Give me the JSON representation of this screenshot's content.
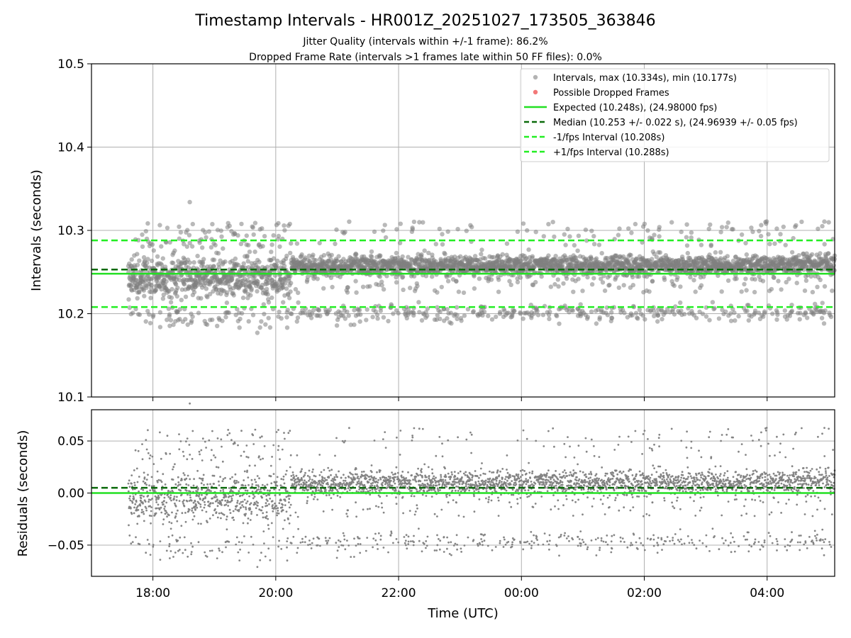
{
  "chart_data": [
    {
      "type": "scatter",
      "panel": "intervals",
      "title": "Timestamp Intervals - HR001Z_20251027_173505_363846",
      "subtitle_lines": [
        "Jitter Quality (intervals within +/-1 frame): 86.2%",
        "Dropped Frame Rate (intervals >1 frames late within 50 FF files): 0.0%"
      ],
      "ylabel": "Intervals (seconds)",
      "ylim": [
        10.1,
        10.5
      ],
      "yticks": [
        "10.1",
        "10.2",
        "10.3",
        "10.4",
        "10.5"
      ],
      "xlim_hours": [
        17.0,
        29.1
      ],
      "xticks": [
        "18:00",
        "20:00",
        "22:00",
        "00:00",
        "02:00",
        "04:00"
      ],
      "grid": true,
      "legend_position": "top-right",
      "legend": [
        "Intervals, max (10.334s), min (10.177s)",
        "Possible Dropped Frames",
        "Expected (10.248s), (24.98000 fps)",
        "Median (10.253 +/- 0.022 s), (24.96939 +/- 0.05 fps)",
        "-1/fps Interval (10.208s)",
        "+1/fps Interval (10.288s)"
      ],
      "points_time_range_hours": [
        17.6,
        29.1
      ],
      "points_max": 10.334,
      "points_min": 10.177,
      "reference_lines": {
        "expected": 10.248,
        "median": 10.253,
        "minus_1_fps": 10.208,
        "plus_1_fps": 10.288
      },
      "dropped_frames": []
    },
    {
      "type": "scatter",
      "panel": "residuals",
      "xlabel": "Time (UTC)",
      "ylabel": "Residuals (seconds)",
      "ylim": [
        -0.08,
        0.08
      ],
      "yticks": [
        "−0.05",
        "0.00",
        "0.05"
      ],
      "xlim_hours": [
        17.0,
        29.1
      ],
      "xticks": [
        "18:00",
        "20:00",
        "22:00",
        "00:00",
        "02:00",
        "04:00"
      ],
      "grid": true,
      "reference_lines": {
        "zero": 0.0,
        "median_offset": 0.005
      }
    }
  ],
  "colors": {
    "points": "#808080",
    "dropped": "#f06060",
    "expected": "#22e022",
    "median": "#0a6a0a",
    "fps_bounds": "#22ee22",
    "grid": "#b0b0b0"
  }
}
